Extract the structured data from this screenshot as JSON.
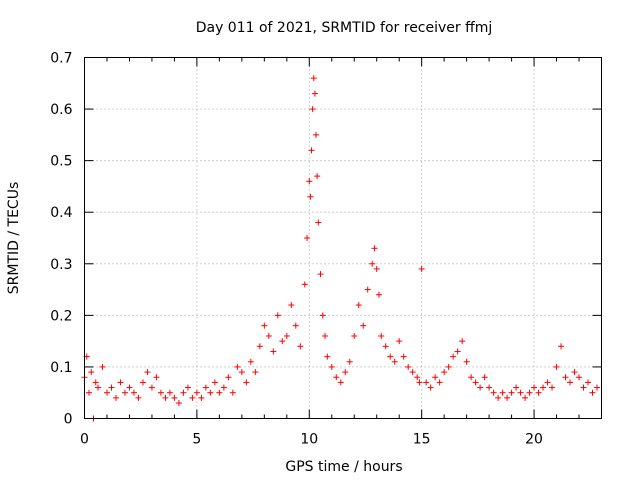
{
  "chart_data": {
    "type": "scatter",
    "title": "Day 011 of 2021, SRMTID for receiver ffmj",
    "xlabel": "GPS time / hours",
    "ylabel": "SRMTID / TECUs",
    "xlim": [
      0,
      23
    ],
    "ylim": [
      0,
      0.7
    ],
    "x_ticks": [
      0,
      5,
      10,
      15,
      20
    ],
    "y_ticks": [
      0,
      0.1,
      0.2,
      0.3,
      0.4,
      0.5,
      0.6,
      0.7
    ],
    "x_tick_labels": [
      "0",
      "5",
      "10",
      "15",
      "20"
    ],
    "y_tick_labels": [
      "0",
      "0.1",
      "0.2",
      "0.3",
      "0.4",
      "0.5",
      "0.6",
      "0.7"
    ],
    "grid": true,
    "marker": "plus",
    "color": "#ff0000",
    "series": [
      {
        "name": "SRMTID",
        "x": [
          0.0,
          0.1,
          0.2,
          0.3,
          0.4,
          0.5,
          0.6,
          0.8,
          1.0,
          1.2,
          1.4,
          1.6,
          1.8,
          2.0,
          2.2,
          2.4,
          2.6,
          2.8,
          3.0,
          3.2,
          3.4,
          3.6,
          3.8,
          4.0,
          4.2,
          4.4,
          4.6,
          4.8,
          5.0,
          5.2,
          5.4,
          5.6,
          5.8,
          6.0,
          6.2,
          6.4,
          6.6,
          6.8,
          7.0,
          7.2,
          7.4,
          7.6,
          7.8,
          8.0,
          8.2,
          8.4,
          8.6,
          8.8,
          9.0,
          9.2,
          9.4,
          9.6,
          9.8,
          9.9,
          10.0,
          10.05,
          10.1,
          10.15,
          10.2,
          10.25,
          10.3,
          10.35,
          10.4,
          10.5,
          10.6,
          10.7,
          10.8,
          11.0,
          11.2,
          11.4,
          11.6,
          11.8,
          12.0,
          12.2,
          12.4,
          12.6,
          12.8,
          12.9,
          13.0,
          13.1,
          13.2,
          13.4,
          13.6,
          13.8,
          14.0,
          14.2,
          14.4,
          14.6,
          14.8,
          14.9,
          15.0,
          15.2,
          15.4,
          15.6,
          15.8,
          16.0,
          16.2,
          16.4,
          16.6,
          16.8,
          17.0,
          17.2,
          17.4,
          17.6,
          17.8,
          18.0,
          18.2,
          18.4,
          18.6,
          18.8,
          19.0,
          19.2,
          19.4,
          19.6,
          19.8,
          20.0,
          20.2,
          20.4,
          20.6,
          20.8,
          21.0,
          21.2,
          21.4,
          21.6,
          21.8,
          22.0,
          22.2,
          22.4,
          22.6,
          22.8
        ],
        "y": [
          0.08,
          0.12,
          0.05,
          0.09,
          0.0,
          0.07,
          0.06,
          0.1,
          0.05,
          0.06,
          0.04,
          0.07,
          0.05,
          0.06,
          0.05,
          0.04,
          0.07,
          0.09,
          0.06,
          0.08,
          0.05,
          0.04,
          0.05,
          0.04,
          0.03,
          0.05,
          0.06,
          0.04,
          0.05,
          0.04,
          0.06,
          0.05,
          0.07,
          0.05,
          0.06,
          0.08,
          0.05,
          0.1,
          0.09,
          0.07,
          0.11,
          0.09,
          0.14,
          0.18,
          0.16,
          0.13,
          0.2,
          0.15,
          0.16,
          0.22,
          0.18,
          0.14,
          0.26,
          0.35,
          0.46,
          0.43,
          0.52,
          0.6,
          0.66,
          0.63,
          0.55,
          0.47,
          0.38,
          0.28,
          0.2,
          0.16,
          0.12,
          0.1,
          0.08,
          0.07,
          0.09,
          0.11,
          0.16,
          0.22,
          0.18,
          0.25,
          0.3,
          0.33,
          0.29,
          0.24,
          0.16,
          0.14,
          0.12,
          0.11,
          0.15,
          0.12,
          0.1,
          0.09,
          0.08,
          0.07,
          0.29,
          0.07,
          0.06,
          0.08,
          0.07,
          0.09,
          0.1,
          0.12,
          0.13,
          0.15,
          0.11,
          0.08,
          0.07,
          0.06,
          0.08,
          0.06,
          0.05,
          0.04,
          0.05,
          0.04,
          0.05,
          0.06,
          0.05,
          0.04,
          0.05,
          0.06,
          0.05,
          0.06,
          0.07,
          0.06,
          0.1,
          0.14,
          0.08,
          0.07,
          0.09,
          0.08,
          0.06,
          0.07,
          0.05,
          0.06
        ]
      }
    ]
  }
}
